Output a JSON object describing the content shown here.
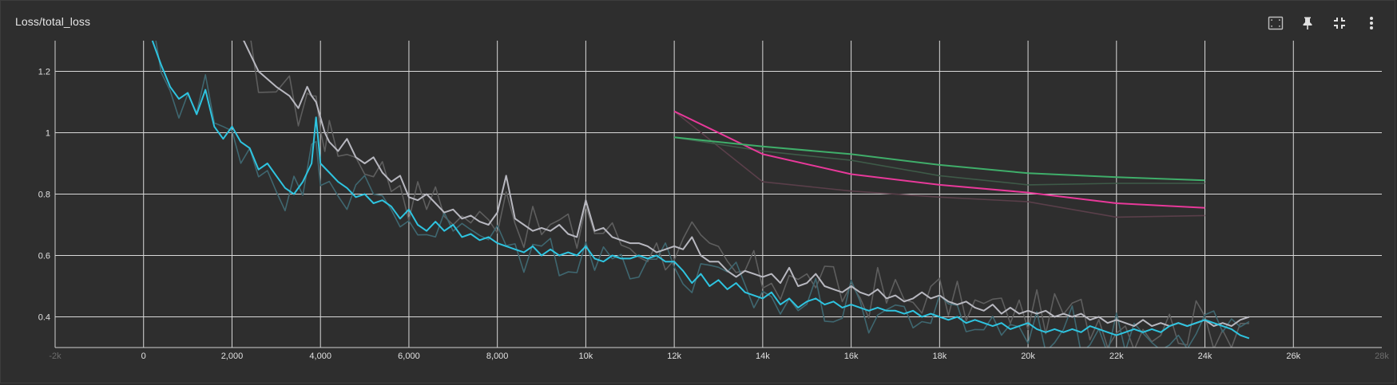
{
  "header": {
    "title": "Loss/total_loss"
  },
  "toolbar": {
    "buttons": [
      {
        "name": "fit-domain-icon"
      },
      {
        "name": "pin-icon"
      },
      {
        "name": "exit-fullscreen-icon"
      },
      {
        "name": "more-vert-icon"
      }
    ]
  },
  "colors": {
    "background": "#2e2e2e",
    "grid": "#d9d9d9",
    "train_cyan": "#2ec4e0",
    "train_gray": "#b8b8c0",
    "eval_pink": "#e8399a",
    "eval_green": "#3fae6a",
    "raw_cyan": "#3f6770",
    "raw_gray": "#5e5e5e",
    "raw_pink": "#5a3f4a",
    "raw_green": "#3e5a48"
  },
  "chart_data": {
    "type": "line",
    "title": "Loss/total_loss",
    "xlabel": "",
    "ylabel": "",
    "xlim": [
      -2000,
      28000
    ],
    "ylim": [
      0.3,
      1.3
    ],
    "x_ticks": [
      {
        "value": -2000,
        "label": "-2k"
      },
      {
        "value": 0,
        "label": "0"
      },
      {
        "value": 2000,
        "label": "2,000"
      },
      {
        "value": 4000,
        "label": "4,000"
      },
      {
        "value": 6000,
        "label": "6,000"
      },
      {
        "value": 8000,
        "label": "8,000"
      },
      {
        "value": 10000,
        "label": "10k"
      },
      {
        "value": 12000,
        "label": "12k"
      },
      {
        "value": 14000,
        "label": "14k"
      },
      {
        "value": 16000,
        "label": "16k"
      },
      {
        "value": 18000,
        "label": "18k"
      },
      {
        "value": 20000,
        "label": "20k"
      },
      {
        "value": 22000,
        "label": "22k"
      },
      {
        "value": 24000,
        "label": "24k"
      },
      {
        "value": 26000,
        "label": "26k"
      },
      {
        "value": 28000,
        "label": "28k"
      }
    ],
    "y_ticks": [
      {
        "value": 0.4,
        "label": "0.4"
      },
      {
        "value": 0.6,
        "label": "0.6"
      },
      {
        "value": 0.8,
        "label": "0.8"
      },
      {
        "value": 1.0,
        "label": "1"
      },
      {
        "value": 1.2,
        "label": "1.2"
      }
    ],
    "grid": true,
    "series": [
      {
        "color": "#b8b8c0",
        "raw_color": "#5e5e5e",
        "x": [
          2200,
          2400,
          2600,
          3000,
          3300,
          3500,
          3700,
          3800,
          3900,
          4000,
          4100,
          4200,
          4400,
          4600,
          4800,
          5000,
          5200,
          5400,
          5600,
          5800,
          6000,
          6200,
          6400,
          6600,
          6800,
          7000,
          7200,
          7400,
          7600,
          7800,
          8000,
          8200,
          8400,
          8600,
          8800,
          9000,
          9200,
          9400,
          9600,
          9800,
          10000,
          10200,
          10400,
          10600,
          10800,
          11000,
          11200,
          11400,
          11600,
          11800,
          12000,
          12200,
          12400,
          12600,
          12800,
          13000,
          13200,
          13400,
          13600,
          13800,
          14000,
          14200,
          14400,
          14600,
          14800,
          15000,
          15200,
          15400,
          15600,
          15800,
          16000,
          16200,
          16400,
          16600,
          16800,
          17000,
          17200,
          17400,
          17600,
          17800,
          18000,
          18200,
          18400,
          18600,
          18800,
          19000,
          19200,
          19400,
          19600,
          19800,
          20000,
          20200,
          20400,
          20600,
          20800,
          21000,
          21200,
          21400,
          21600,
          21800,
          22000,
          22200,
          22400,
          22600,
          22800,
          23000,
          23200,
          23400,
          23600,
          23800,
          24000,
          24200,
          24400,
          24600,
          24800,
          25000
        ],
        "y": [
          1.32,
          1.26,
          1.2,
          1.15,
          1.12,
          1.08,
          1.15,
          1.12,
          1.1,
          1.05,
          1.0,
          0.97,
          0.94,
          0.98,
          0.92,
          0.9,
          0.92,
          0.87,
          0.84,
          0.86,
          0.79,
          0.78,
          0.8,
          0.77,
          0.74,
          0.75,
          0.72,
          0.73,
          0.71,
          0.7,
          0.74,
          0.86,
          0.72,
          0.7,
          0.68,
          0.69,
          0.68,
          0.7,
          0.67,
          0.66,
          0.78,
          0.68,
          0.69,
          0.66,
          0.65,
          0.64,
          0.64,
          0.63,
          0.61,
          0.62,
          0.63,
          0.62,
          0.66,
          0.6,
          0.58,
          0.58,
          0.55,
          0.53,
          0.55,
          0.54,
          0.53,
          0.54,
          0.51,
          0.56,
          0.5,
          0.51,
          0.54,
          0.5,
          0.49,
          0.48,
          0.5,
          0.48,
          0.47,
          0.49,
          0.46,
          0.47,
          0.45,
          0.46,
          0.48,
          0.46,
          0.47,
          0.45,
          0.44,
          0.45,
          0.43,
          0.42,
          0.44,
          0.41,
          0.43,
          0.41,
          0.42,
          0.41,
          0.42,
          0.4,
          0.41,
          0.4,
          0.41,
          0.39,
          0.4,
          0.38,
          0.39,
          0.38,
          0.37,
          0.39,
          0.37,
          0.38,
          0.37,
          0.38,
          0.37,
          0.38,
          0.39,
          0.37,
          0.38,
          0.37,
          0.39,
          0.4
        ]
      },
      {
        "color": "#2ec4e0",
        "raw_color": "#3f6770",
        "x": [
          200,
          400,
          600,
          800,
          1000,
          1200,
          1400,
          1600,
          1800,
          2000,
          2200,
          2400,
          2600,
          2800,
          3000,
          3200,
          3400,
          3600,
          3800,
          3900,
          4000,
          4200,
          4400,
          4600,
          4800,
          5000,
          5200,
          5400,
          5600,
          5800,
          6000,
          6200,
          6400,
          6600,
          6800,
          7000,
          7200,
          7400,
          7600,
          7800,
          8000,
          8200,
          8400,
          8600,
          8800,
          9000,
          9200,
          9400,
          9600,
          9800,
          10000,
          10200,
          10400,
          10600,
          10800,
          11000,
          11200,
          11400,
          11600,
          11800,
          12000,
          12200,
          12400,
          12600,
          12800,
          13000,
          13200,
          13400,
          13600,
          13800,
          14000,
          14200,
          14400,
          14600,
          14800,
          15000,
          15200,
          15400,
          15600,
          15800,
          16000,
          16200,
          16400,
          16600,
          16800,
          17000,
          17200,
          17400,
          17600,
          17800,
          18000,
          18200,
          18400,
          18600,
          18800,
          19000,
          19200,
          19400,
          19600,
          19800,
          20000,
          20200,
          20400,
          20600,
          20800,
          21000,
          21200,
          21400,
          21600,
          21800,
          22000,
          22200,
          22400,
          22600,
          22800,
          23000,
          23200,
          23400,
          23600,
          23800,
          24000,
          24200,
          24400,
          24600,
          24800,
          25000
        ],
        "y": [
          1.3,
          1.22,
          1.15,
          1.11,
          1.13,
          1.06,
          1.14,
          1.02,
          0.98,
          1.02,
          0.97,
          0.95,
          0.88,
          0.9,
          0.86,
          0.82,
          0.8,
          0.84,
          0.9,
          1.05,
          0.9,
          0.87,
          0.84,
          0.82,
          0.79,
          0.8,
          0.77,
          0.78,
          0.76,
          0.72,
          0.75,
          0.7,
          0.68,
          0.71,
          0.68,
          0.7,
          0.66,
          0.67,
          0.65,
          0.66,
          0.64,
          0.63,
          0.62,
          0.61,
          0.63,
          0.6,
          0.62,
          0.6,
          0.61,
          0.6,
          0.63,
          0.59,
          0.58,
          0.6,
          0.59,
          0.59,
          0.6,
          0.59,
          0.6,
          0.58,
          0.58,
          0.55,
          0.51,
          0.54,
          0.5,
          0.52,
          0.49,
          0.51,
          0.48,
          0.47,
          0.46,
          0.48,
          0.44,
          0.46,
          0.43,
          0.45,
          0.46,
          0.44,
          0.45,
          0.43,
          0.44,
          0.43,
          0.42,
          0.43,
          0.42,
          0.42,
          0.41,
          0.42,
          0.4,
          0.41,
          0.4,
          0.39,
          0.4,
          0.38,
          0.39,
          0.38,
          0.37,
          0.38,
          0.36,
          0.37,
          0.38,
          0.36,
          0.35,
          0.36,
          0.35,
          0.36,
          0.35,
          0.37,
          0.36,
          0.35,
          0.34,
          0.35,
          0.36,
          0.35,
          0.36,
          0.35,
          0.37,
          0.38,
          0.37,
          0.38,
          0.39,
          0.38,
          0.37,
          0.36,
          0.34,
          0.33
        ]
      },
      {
        "color": "#e8399a",
        "raw_color": "#5a3f4a",
        "x": [
          12000,
          14000,
          16000,
          18000,
          20000,
          22000,
          24000
        ],
        "y": [
          1.07,
          0.93,
          0.865,
          0.83,
          0.805,
          0.77,
          0.755
        ],
        "raw_y": [
          1.07,
          0.84,
          0.81,
          0.79,
          0.775,
          0.725,
          0.73
        ]
      },
      {
        "color": "#3fae6a",
        "raw_color": "#3e5a48",
        "x": [
          12000,
          14000,
          16000,
          18000,
          20000,
          22000,
          24000
        ],
        "y": [
          0.985,
          0.955,
          0.93,
          0.895,
          0.868,
          0.855,
          0.845
        ],
        "raw_y": [
          0.985,
          0.94,
          0.91,
          0.86,
          0.83,
          0.835,
          0.835
        ]
      }
    ]
  }
}
